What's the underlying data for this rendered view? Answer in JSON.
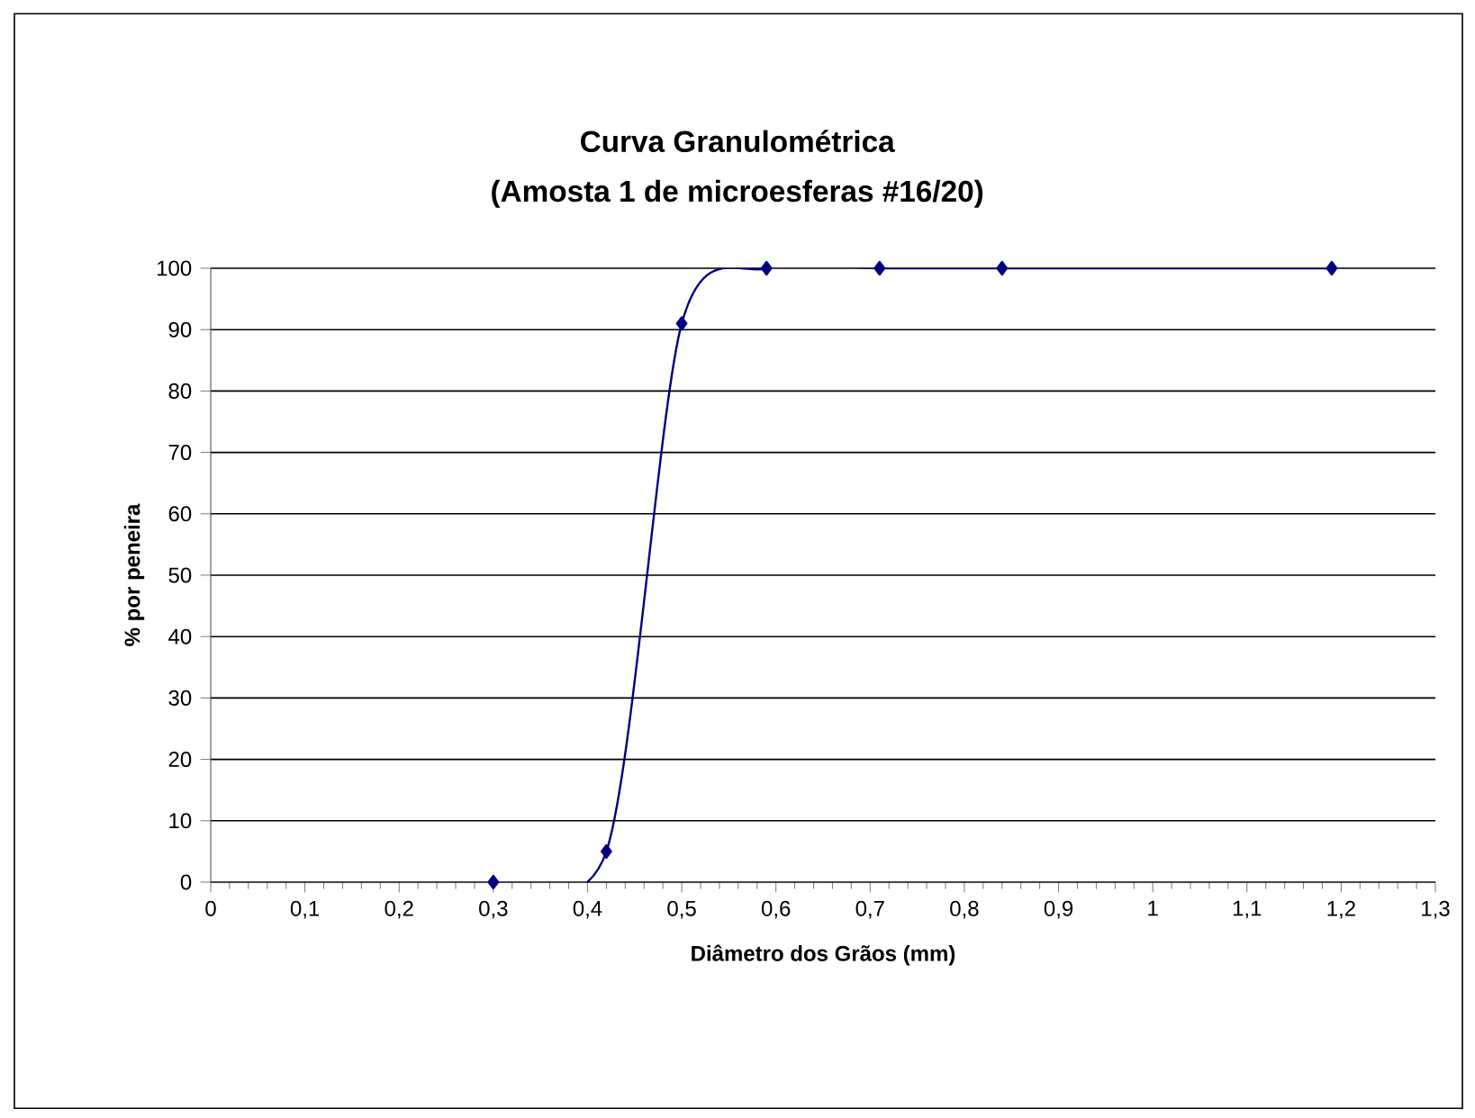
{
  "chart_data": {
    "type": "line",
    "title": "Curva Granulométrica",
    "subtitle": "(Amosta 1 de microesferas #16/20)",
    "xlabel": "Diâmetro dos Grãos (mm)",
    "ylabel": "% por peneira",
    "x": [
      0.3,
      0.42,
      0.5,
      0.59,
      0.71,
      0.84,
      1.19
    ],
    "series": [
      {
        "color": "#000080",
        "values": [
          0,
          5,
          91,
          100,
          100,
          100,
          100
        ]
      }
    ],
    "xlim": [
      0,
      1.3
    ],
    "xticks": [
      0,
      {
        "value": 0.1,
        "label": "0,1"
      },
      {
        "value": 0.2,
        "label": "0,2"
      },
      {
        "value": 0.3,
        "label": "0,3"
      },
      {
        "value": 0.4,
        "label": "0,4"
      },
      {
        "value": 0.5,
        "label": "0,5"
      },
      {
        "value": 0.6,
        "label": "0,6"
      },
      {
        "value": 0.7,
        "label": "0,7"
      },
      {
        "value": 0.8,
        "label": "0,8"
      },
      {
        "value": 0.9,
        "label": "0,9"
      },
      1,
      {
        "value": 1.1,
        "label": "1,1"
      },
      {
        "value": 1.2,
        "label": "1,2"
      },
      {
        "value": 1.3,
        "label": "1,3"
      }
    ],
    "ylim": [
      0,
      100
    ],
    "yticks": [
      0,
      10,
      20,
      30,
      40,
      50,
      60,
      70,
      80,
      90,
      100
    ],
    "grid": "y",
    "marker": "diamond",
    "line_style": "solid"
  }
}
